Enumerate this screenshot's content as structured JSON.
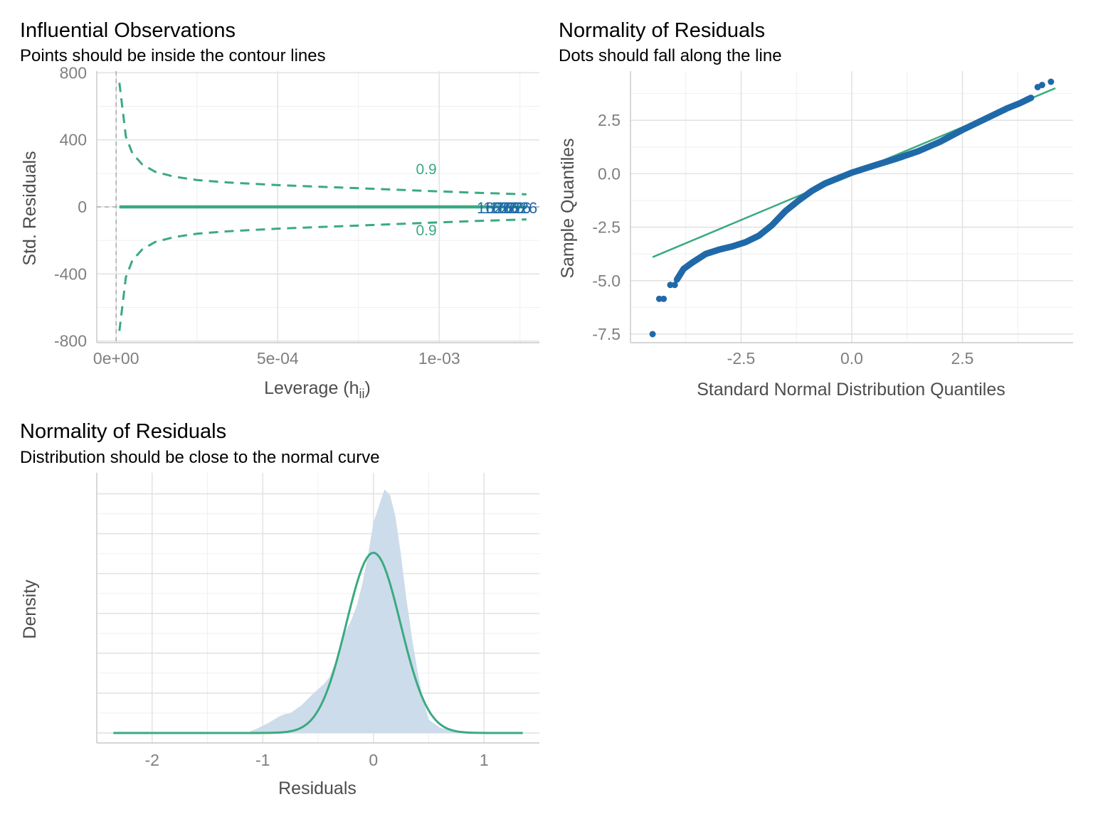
{
  "colors": {
    "green": "#3aaa80",
    "blue": "#2069a8",
    "fill": "#cddceb",
    "grid": "#e3e3e3",
    "tick_text": "#7f7f7f",
    "axis_title_text": "#4d4d4d"
  },
  "chart_data": [
    {
      "type": "scatter",
      "title": "Influential Observations",
      "subtitle": "Points should be inside the contour lines",
      "xlabel": "Leverage (h",
      "xlabel_sub": "ii",
      "xlabel_close": ")",
      "ylabel": "Std. Residuals",
      "xlim": [
        -6e-05,
        0.00131
      ],
      "ylim": [
        -810,
        810
      ],
      "x_ticks": [
        0,
        0.0005,
        0.001
      ],
      "x_tick_labels": [
        "0e+00",
        "5e-04",
        "1e-03"
      ],
      "y_ticks": [
        800,
        400,
        0,
        -400,
        -800
      ],
      "y_tick_labels": [
        "800",
        "400",
        "0",
        "-400",
        "-800"
      ],
      "grid": true,
      "points": {
        "x_range": [
          1e-05,
          0.00127
        ],
        "y": 0,
        "label_text": "1626"
      },
      "contour": {
        "level_label": "0.9",
        "level_label_x": 0.00096,
        "upper_label_y": 195,
        "lower_label_y": -170,
        "x": [
          1e-05,
          3e-05,
          5e-05,
          8e-05,
          0.00012,
          0.00018,
          0.00025,
          0.00035,
          0.0005,
          0.0007,
          0.0009,
          0.0011,
          0.00127
        ],
        "upper_y": [
          740,
          420,
          320,
          255,
          210,
          180,
          160,
          145,
          130,
          115,
          100,
          85,
          75
        ],
        "lower_y": [
          -740,
          -420,
          -320,
          -255,
          -210,
          -180,
          -160,
          -145,
          -130,
          -115,
          -100,
          -85,
          -75
        ]
      },
      "cooks_vline_x": 0.0,
      "reference_hline_y": 0
    },
    {
      "type": "scatter",
      "title": "Normality of Residuals",
      "subtitle": "Dots should fall along the line",
      "xlabel": "Standard Normal Distribution Quantiles",
      "ylabel": "Sample Quantiles",
      "xlim": [
        -5.0,
        5.0
      ],
      "ylim": [
        -7.9,
        4.8
      ],
      "x_ticks": [
        -2.5,
        0.0,
        2.5
      ],
      "x_tick_labels": [
        "-2.5",
        "0.0",
        "2.5"
      ],
      "y_ticks": [
        2.5,
        0.0,
        -2.5,
        -5.0,
        -7.5
      ],
      "y_tick_labels": [
        "2.5",
        "0.0",
        "-2.5",
        "-5.0",
        "-7.5"
      ],
      "grid": true,
      "reference_line": {
        "x": [
          -4.5,
          4.6
        ],
        "y": [
          -3.9,
          4.0
        ]
      },
      "sample_curve": {
        "x": [
          -3.95,
          -3.8,
          -3.6,
          -3.3,
          -3.0,
          -2.7,
          -2.4,
          -2.1,
          -1.8,
          -1.5,
          -1.2,
          -0.9,
          -0.6,
          -0.3,
          0.0,
          0.5,
          1.0,
          1.5,
          2.0,
          2.5,
          3.0,
          3.5,
          3.8,
          4.05
        ],
        "y": [
          -4.95,
          -4.45,
          -4.15,
          -3.75,
          -3.55,
          -3.4,
          -3.2,
          -2.9,
          -2.4,
          -1.75,
          -1.25,
          -0.8,
          -0.45,
          -0.2,
          0.05,
          0.38,
          0.7,
          1.05,
          1.5,
          2.05,
          2.55,
          3.05,
          3.3,
          3.55
        ]
      },
      "outliers": {
        "x": [
          -4.5,
          -4.35,
          -4.25,
          -4.1,
          -4.0,
          4.2,
          4.3,
          4.5
        ],
        "y": [
          -7.5,
          -5.85,
          -5.85,
          -5.2,
          -5.2,
          4.05,
          4.15,
          4.3
        ]
      }
    },
    {
      "type": "area",
      "title": "Normality of Residuals",
      "subtitle": "Distribution should be close to the normal curve",
      "xlabel": "Residuals",
      "ylabel": "Density",
      "xlim": [
        -2.5,
        1.5
      ],
      "ylim": [
        -0.09,
        2.35
      ],
      "x_ticks": [
        -2,
        -1,
        0,
        1
      ],
      "x_tick_labels": [
        "-2",
        "-1",
        "0",
        "1"
      ],
      "grid": true,
      "empirical_density": {
        "x": [
          -1.15,
          -1.05,
          -0.95,
          -0.85,
          -0.8,
          -0.75,
          -0.65,
          -0.55,
          -0.45,
          -0.4,
          -0.35,
          -0.3,
          -0.25,
          -0.2,
          -0.15,
          -0.1,
          -0.05,
          0.0,
          0.05,
          0.1,
          0.15,
          0.2,
          0.25,
          0.3,
          0.35,
          0.4,
          0.45,
          0.5,
          0.6,
          0.7,
          0.8,
          0.9
        ],
        "y": [
          0.0,
          0.04,
          0.09,
          0.15,
          0.17,
          0.18,
          0.25,
          0.35,
          0.44,
          0.5,
          0.62,
          0.78,
          0.92,
          1.02,
          1.15,
          1.35,
          1.6,
          1.9,
          2.05,
          2.2,
          2.15,
          1.95,
          1.6,
          1.2,
          0.85,
          0.55,
          0.3,
          0.12,
          0.05,
          0.02,
          0.01,
          0.0
        ]
      },
      "normal_curve": {
        "mean": 0.0,
        "sd": 0.245,
        "x_range": [
          -2.35,
          1.35
        ]
      }
    }
  ]
}
